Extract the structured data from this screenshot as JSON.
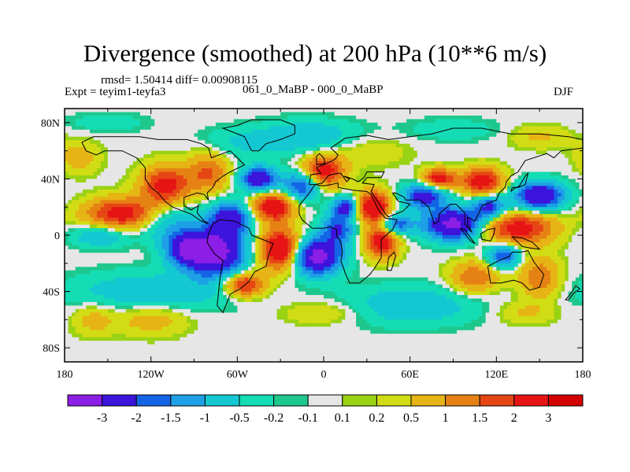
{
  "chart_data": {
    "type": "heatmap",
    "title": "Divergence (smoothed) at 200 hPa (10**6 m/s)",
    "stats_text": "rmsd= 1.50414 diff= 0.00908115",
    "left_label": "Expt = teyim1-teyfa3",
    "center_label": "061_0_MaBP - 000_0_MaBP",
    "right_label": "DJF",
    "units": "10**6 m/s",
    "xlim": [
      -180,
      180
    ],
    "ylim": [
      -90,
      90
    ],
    "x_ticks": [
      {
        "value": -180,
        "label": "180"
      },
      {
        "value": -120,
        "label": "120W"
      },
      {
        "value": -60,
        "label": "60W"
      },
      {
        "value": 0,
        "label": "0"
      },
      {
        "value": 60,
        "label": "60E"
      },
      {
        "value": 120,
        "label": "120E"
      },
      {
        "value": 180,
        "label": "180"
      }
    ],
    "y_ticks": [
      {
        "value": 80,
        "label": "80N"
      },
      {
        "value": 40,
        "label": "40N"
      },
      {
        "value": 0,
        "label": "0"
      },
      {
        "value": -40,
        "label": "40S"
      },
      {
        "value": -80,
        "label": "80S"
      }
    ],
    "contour_levels": [
      "-3",
      "-2",
      "-1.5",
      "-1",
      "-0.5",
      "-0.2",
      "-0.1",
      "0.1",
      "0.2",
      "0.5",
      "1",
      "1.5",
      "2",
      "3"
    ],
    "colors": [
      "#8c1ee6",
      "#3c14dc",
      "#1464e6",
      "#1ea0e6",
      "#14c8d2",
      "#14dcb4",
      "#1ec88c",
      "#e6e6e6",
      "#9ad214",
      "#d2dc14",
      "#e6b414",
      "#e68214",
      "#e64614",
      "#e61414",
      "#d20000"
    ],
    "features": [
      {
        "lon": -110,
        "lat": 10,
        "sigma_lon": 14,
        "sigma_lat": 10,
        "value": -1.2
      },
      {
        "lon": -75,
        "lat": -12,
        "sigma_lon": 14,
        "sigma_lat": 12,
        "value": -3.6
      },
      {
        "lon": -65,
        "lat": 12,
        "sigma_lon": 10,
        "sigma_lat": 8,
        "value": -2.5
      },
      {
        "lon": -95,
        "lat": -10,
        "sigma_lon": 10,
        "sigma_lat": 8,
        "value": -2.6
      },
      {
        "lon": -45,
        "lat": 40,
        "sigma_lon": 9,
        "sigma_lat": 6,
        "value": -2.8
      },
      {
        "lon": -15,
        "lat": 35,
        "sigma_lon": 9,
        "sigma_lat": 7,
        "value": -2.2
      },
      {
        "lon": -5,
        "lat": -15,
        "sigma_lon": 12,
        "sigma_lat": 9,
        "value": -3.5
      },
      {
        "lon": 10,
        "lat": 5,
        "sigma_lon": 8,
        "sigma_lat": 8,
        "value": -2.0
      },
      {
        "lon": 15,
        "lat": 20,
        "sigma_lon": 6,
        "sigma_lat": 5,
        "value": -2.2
      },
      {
        "lon": 50,
        "lat": 8,
        "sigma_lon": 8,
        "sigma_lat": 5,
        "value": -2.0
      },
      {
        "lon": 70,
        "lat": 28,
        "sigma_lon": 10,
        "sigma_lat": 6,
        "value": -2.5
      },
      {
        "lon": 90,
        "lat": 8,
        "sigma_lon": 14,
        "sigma_lat": 8,
        "value": -3.4
      },
      {
        "lon": 115,
        "lat": 20,
        "sigma_lon": 8,
        "sigma_lat": 6,
        "value": -2.2
      },
      {
        "lon": 150,
        "lat": 28,
        "sigma_lon": 12,
        "sigma_lat": 7,
        "value": -3.0
      },
      {
        "lon": 125,
        "lat": -15,
        "sigma_lon": 8,
        "sigma_lat": 6,
        "value": -2.0
      },
      {
        "lon": -155,
        "lat": 0,
        "sigma_lon": 14,
        "sigma_lat": 6,
        "value": -1.1
      },
      {
        "lon": -120,
        "lat": -40,
        "sigma_lon": 40,
        "sigma_lat": 10,
        "value": -0.9
      },
      {
        "lon": 60,
        "lat": -50,
        "sigma_lon": 35,
        "sigma_lat": 10,
        "value": -0.9
      },
      {
        "lon": -10,
        "lat": 70,
        "sigma_lon": 25,
        "sigma_lat": 8,
        "value": -1.0
      },
      {
        "lon": -140,
        "lat": 15,
        "sigma_lon": 18,
        "sigma_lat": 8,
        "value": 2.5
      },
      {
        "lon": -110,
        "lat": 35,
        "sigma_lon": 12,
        "sigma_lat": 10,
        "value": 2.4
      },
      {
        "lon": -80,
        "lat": 45,
        "sigma_lon": 10,
        "sigma_lat": 10,
        "value": 1.6
      },
      {
        "lon": -30,
        "lat": -10,
        "sigma_lon": 10,
        "sigma_lat": 10,
        "value": 3.2
      },
      {
        "lon": -55,
        "lat": -35,
        "sigma_lon": 10,
        "sigma_lat": 6,
        "value": 2.4
      },
      {
        "lon": -35,
        "lat": 20,
        "sigma_lon": 10,
        "sigma_lat": 7,
        "value": 2.8
      },
      {
        "lon": 0,
        "lat": 45,
        "sigma_lon": 10,
        "sigma_lat": 8,
        "value": 2.5
      },
      {
        "lon": 35,
        "lat": 20,
        "sigma_lon": 8,
        "sigma_lat": 8,
        "value": 3.0
      },
      {
        "lon": 40,
        "lat": -5,
        "sigma_lon": 8,
        "sigma_lat": 8,
        "value": 2.5
      },
      {
        "lon": 80,
        "lat": 40,
        "sigma_lon": 8,
        "sigma_lat": 5,
        "value": 2.5
      },
      {
        "lon": 110,
        "lat": 38,
        "sigma_lon": 10,
        "sigma_lat": 7,
        "value": 2.6
      },
      {
        "lon": 135,
        "lat": 5,
        "sigma_lon": 18,
        "sigma_lat": 8,
        "value": 2.4
      },
      {
        "lon": 105,
        "lat": -30,
        "sigma_lon": 12,
        "sigma_lat": 8,
        "value": 1.5
      },
      {
        "lon": 150,
        "lat": -30,
        "sigma_lon": 10,
        "sigma_lat": 10,
        "value": 1.5
      },
      {
        "lon": -120,
        "lat": -60,
        "sigma_lon": 18,
        "sigma_lat": 8,
        "value": 0.8
      },
      {
        "lon": -160,
        "lat": -60,
        "sigma_lon": 10,
        "sigma_lat": 8,
        "value": 0.7
      },
      {
        "lon": 0,
        "lat": -55,
        "sigma_lon": 20,
        "sigma_lat": 6,
        "value": 0.6
      },
      {
        "lon": 140,
        "lat": -55,
        "sigma_lon": 15,
        "sigma_lat": 6,
        "value": 0.6
      },
      {
        "lon": -170,
        "lat": 55,
        "sigma_lon": 10,
        "sigma_lat": 8,
        "value": 0.8
      },
      {
        "lon": 30,
        "lat": 60,
        "sigma_lon": 20,
        "sigma_lat": 8,
        "value": 0.5
      },
      {
        "lon": 150,
        "lat": 70,
        "sigma_lon": 15,
        "sigma_lat": 6,
        "value": 0.6
      },
      {
        "lon": -60,
        "lat": 65,
        "sigma_lon": 20,
        "sigma_lat": 8,
        "value": -0.5
      },
      {
        "lon": -150,
        "lat": 80,
        "sigma_lon": 20,
        "sigma_lat": 5,
        "value": -0.4
      },
      {
        "lon": 90,
        "lat": 75,
        "sigma_lon": 25,
        "sigma_lat": 6,
        "value": -0.4
      }
    ],
    "coastlines": [
      [
        [
          -168,
          66
        ],
        [
          -160,
          70
        ],
        [
          -140,
          70
        ],
        [
          -128,
          70
        ],
        [
          -115,
          68
        ],
        [
          -95,
          68
        ],
        [
          -85,
          65
        ],
        [
          -80,
          62
        ],
        [
          -78,
          55
        ],
        [
          -65,
          60
        ],
        [
          -60,
          55
        ],
        [
          -55,
          50
        ],
        [
          -65,
          45
        ],
        [
          -70,
          42
        ],
        [
          -75,
          38
        ],
        [
          -77,
          34
        ],
        [
          -81,
          30
        ],
        [
          -80,
          25
        ],
        [
          -83,
          29
        ],
        [
          -88,
          30
        ],
        [
          -97,
          27
        ],
        [
          -97,
          21
        ],
        [
          -92,
          18
        ],
        [
          -87,
          21
        ],
        [
          -88,
          16
        ],
        [
          -83,
          10
        ],
        [
          -80,
          8
        ],
        [
          -85,
          10
        ],
        [
          -92,
          15
        ],
        [
          -105,
          20
        ],
        [
          -110,
          24
        ],
        [
          -115,
          30
        ],
        [
          -120,
          34
        ],
        [
          -124,
          40
        ],
        [
          -124,
          48
        ],
        [
          -130,
          55
        ],
        [
          -140,
          60
        ],
        [
          -152,
          60
        ],
        [
          -158,
          57
        ],
        [
          -165,
          60
        ],
        [
          -168,
          66
        ]
      ],
      [
        [
          -77,
          8
        ],
        [
          -72,
          11
        ],
        [
          -62,
          10
        ],
        [
          -52,
          5
        ],
        [
          -50,
          0
        ],
        [
          -45,
          -2
        ],
        [
          -35,
          -6
        ],
        [
          -38,
          -13
        ],
        [
          -40,
          -22
        ],
        [
          -48,
          -26
        ],
        [
          -52,
          -33
        ],
        [
          -58,
          -38
        ],
        [
          -65,
          -42
        ],
        [
          -68,
          -50
        ],
        [
          -70,
          -55
        ],
        [
          -74,
          -50
        ],
        [
          -73,
          -40
        ],
        [
          -72,
          -30
        ],
        [
          -70,
          -18
        ],
        [
          -76,
          -13
        ],
        [
          -81,
          -5
        ],
        [
          -80,
          1
        ],
        [
          -77,
          8
        ]
      ],
      [
        [
          -10,
          36
        ],
        [
          -9,
          43
        ],
        [
          -2,
          44
        ],
        [
          -5,
          48
        ],
        [
          2,
          51
        ],
        [
          8,
          54
        ],
        [
          10,
          57
        ],
        [
          5,
          62
        ],
        [
          15,
          69
        ],
        [
          30,
          71
        ],
        [
          45,
          68
        ],
        [
          60,
          70
        ],
        [
          75,
          72
        ],
        [
          90,
          76
        ],
        [
          110,
          76
        ],
        [
          130,
          72
        ],
        [
          150,
          72
        ],
        [
          170,
          70
        ],
        [
          180,
          68
        ]
      ],
      [
        [
          180,
          62
        ],
        [
          165,
          60
        ],
        [
          160,
          55
        ],
        [
          155,
          58
        ],
        [
          140,
          53
        ],
        [
          135,
          45
        ],
        [
          130,
          42
        ],
        [
          127,
          38
        ],
        [
          126,
          34
        ],
        [
          122,
          30
        ],
        [
          120,
          25
        ],
        [
          110,
          21
        ],
        [
          108,
          16
        ],
        [
          105,
          10
        ],
        [
          100,
          13
        ],
        [
          100,
          8
        ],
        [
          103,
          2
        ],
        [
          98,
          8
        ],
        [
          98,
          16
        ],
        [
          92,
          22
        ],
        [
          88,
          22
        ],
        [
          80,
          15
        ],
        [
          80,
          10
        ],
        [
          77,
          8
        ],
        [
          73,
          20
        ],
        [
          67,
          25
        ],
        [
          57,
          25
        ],
        [
          56,
          27
        ],
        [
          50,
          30
        ],
        [
          48,
          30
        ],
        [
          52,
          24
        ],
        [
          57,
          23
        ],
        [
          60,
          22
        ],
        [
          55,
          17
        ],
        [
          45,
          13
        ],
        [
          43,
          15
        ],
        [
          35,
          28
        ],
        [
          33,
          31
        ],
        [
          35,
          36
        ],
        [
          27,
          37
        ],
        [
          30,
          41
        ],
        [
          40,
          41
        ],
        [
          42,
          45
        ],
        [
          37,
          45
        ],
        [
          30,
          45
        ],
        [
          28,
          41
        ],
        [
          24,
          38
        ],
        [
          20,
          40
        ],
        [
          14,
          42
        ],
        [
          18,
          40
        ],
        [
          16,
          38
        ],
        [
          12,
          44
        ],
        [
          10,
          44
        ],
        [
          5,
          43
        ],
        [
          3,
          42
        ],
        [
          -1,
          37
        ],
        [
          -6,
          36
        ],
        [
          -10,
          36
        ]
      ],
      [
        [
          -6,
          36
        ],
        [
          -10,
          30
        ],
        [
          -17,
          21
        ],
        [
          -17,
          15
        ],
        [
          -15,
          11
        ],
        [
          -8,
          5
        ],
        [
          0,
          5
        ],
        [
          5,
          6
        ],
        [
          9,
          4
        ],
        [
          9,
          0
        ],
        [
          12,
          -5
        ],
        [
          13,
          -12
        ],
        [
          12,
          -18
        ],
        [
          15,
          -27
        ],
        [
          18,
          -34
        ],
        [
          25,
          -34
        ],
        [
          32,
          -28
        ],
        [
          35,
          -24
        ],
        [
          40,
          -16
        ],
        [
          40,
          -10
        ],
        [
          40,
          -3
        ],
        [
          48,
          4
        ],
        [
          51,
          11
        ],
        [
          43,
          12
        ],
        [
          38,
          18
        ],
        [
          33,
          29
        ],
        [
          30,
          31
        ],
        [
          20,
          32
        ],
        [
          10,
          34
        ],
        [
          10,
          37
        ],
        [
          0,
          35
        ],
        [
          -6,
          36
        ]
      ],
      [
        [
          114,
          -22
        ],
        [
          116,
          -34
        ],
        [
          123,
          -34
        ],
        [
          132,
          -32
        ],
        [
          138,
          -34
        ],
        [
          143,
          -39
        ],
        [
          150,
          -37
        ],
        [
          153,
          -28
        ],
        [
          146,
          -19
        ],
        [
          142,
          -11
        ],
        [
          137,
          -12
        ],
        [
          131,
          -12
        ],
        [
          129,
          -15
        ],
        [
          122,
          -18
        ],
        [
          114,
          -22
        ]
      ],
      [
        [
          -50,
          60
        ],
        [
          -45,
          60
        ],
        [
          -40,
          65
        ],
        [
          -30,
          68
        ],
        [
          -20,
          72
        ],
        [
          -20,
          78
        ],
        [
          -30,
          82
        ],
        [
          -50,
          82
        ],
        [
          -60,
          78
        ],
        [
          -70,
          76
        ],
        [
          -55,
          70
        ],
        [
          -50,
          60
        ]
      ],
      [
        [
          130,
          31
        ],
        [
          131,
          34
        ],
        [
          135,
          34
        ],
        [
          140,
          36
        ],
        [
          141,
          40
        ],
        [
          142,
          44
        ],
        [
          140,
          42
        ],
        [
          136,
          35
        ],
        [
          132,
          33
        ],
        [
          130,
          31
        ]
      ],
      [
        [
          95,
          5
        ],
        [
          98,
          4
        ],
        [
          105,
          -6
        ],
        [
          102,
          -4
        ],
        [
          95,
          5
        ]
      ],
      [
        [
          109,
          1
        ],
        [
          114,
          4
        ],
        [
          119,
          5
        ],
        [
          118,
          0
        ],
        [
          116,
          -4
        ],
        [
          110,
          -3
        ],
        [
          109,
          1
        ]
      ],
      [
        [
          131,
          -1
        ],
        [
          138,
          -2
        ],
        [
          145,
          -5
        ],
        [
          150,
          -10
        ],
        [
          143,
          -9
        ],
        [
          138,
          -8
        ],
        [
          131,
          -1
        ]
      ],
      [
        [
          44,
          -25
        ],
        [
          47,
          -25
        ],
        [
          50,
          -15
        ],
        [
          49,
          -12
        ],
        [
          45,
          -16
        ],
        [
          44,
          -25
        ]
      ],
      [
        [
          -5,
          50
        ],
        [
          1,
          51
        ],
        [
          0,
          55
        ],
        [
          -3,
          58
        ],
        [
          -5,
          56
        ],
        [
          -5,
          50
        ]
      ],
      [
        [
          172,
          -41
        ],
        [
          175,
          -36
        ],
        [
          178,
          -38
        ],
        [
          174,
          -41
        ],
        [
          170,
          -46
        ],
        [
          168,
          -46
        ],
        [
          172,
          -41
        ]
      ]
    ]
  }
}
